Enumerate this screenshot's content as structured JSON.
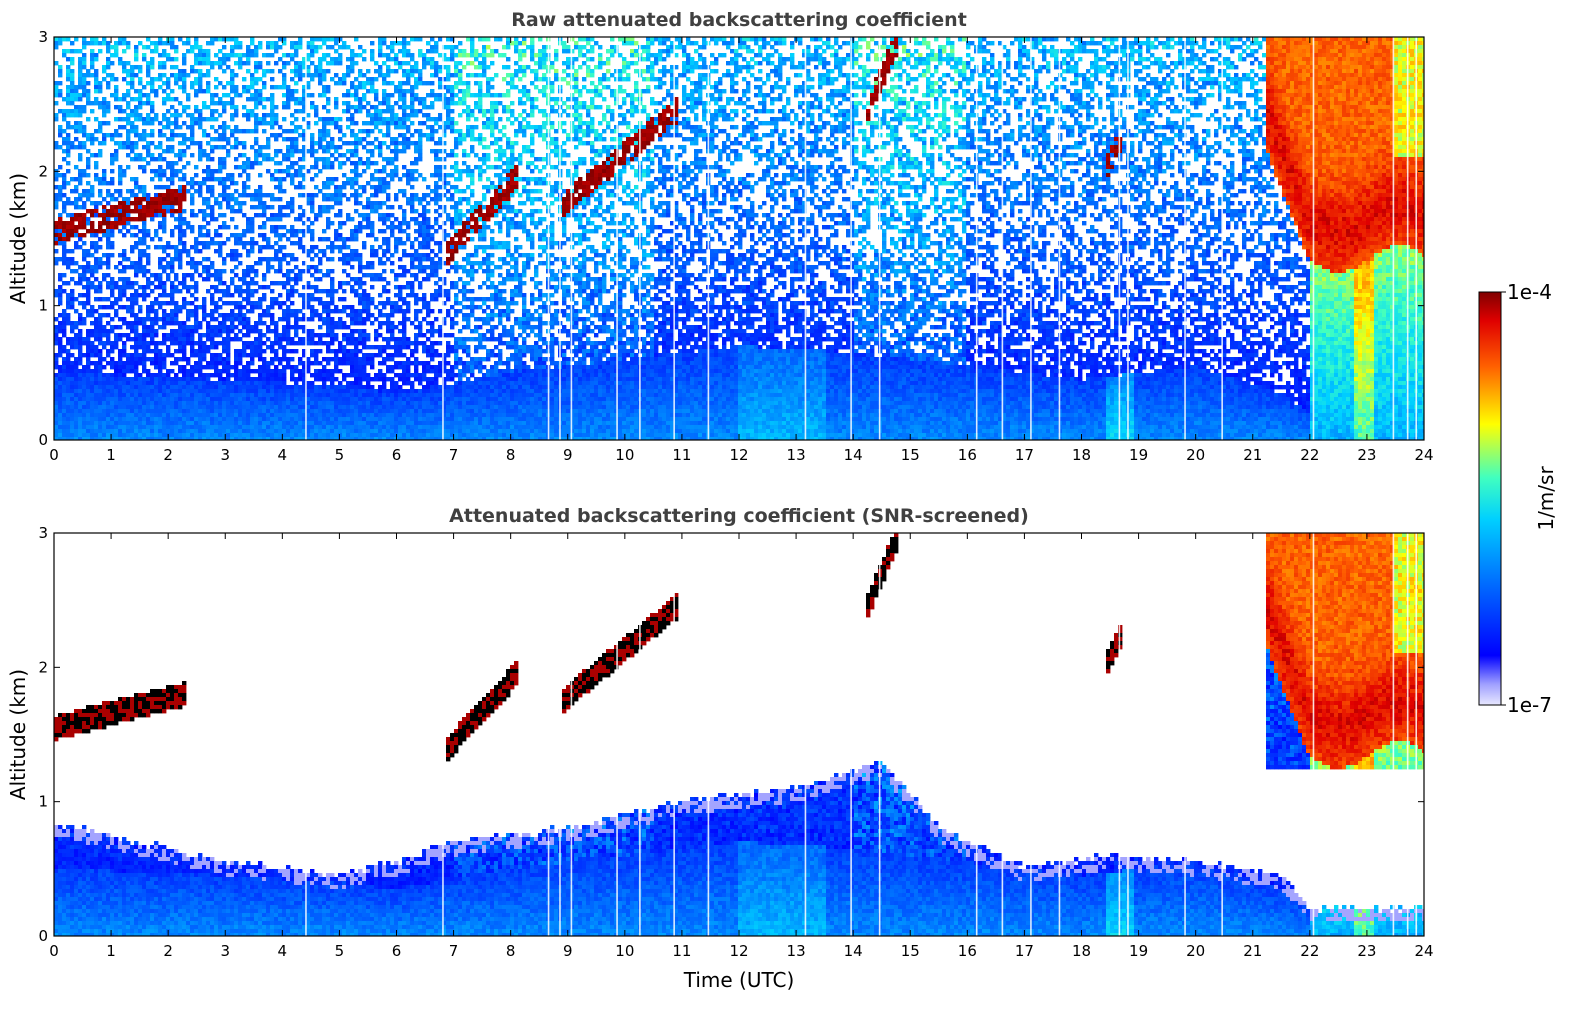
{
  "chart_data": [
    {
      "type": "heatmap",
      "title": "Raw attenuated backscattering coefficient",
      "xlabel": "",
      "ylabel": "Altitude (km)",
      "xlim": [
        0,
        24
      ],
      "ylim": [
        0,
        3
      ],
      "x_ticks": [
        "0",
        "1",
        "2",
        "3",
        "4",
        "5",
        "6",
        "7",
        "8",
        "9",
        "10",
        "11",
        "12",
        "13",
        "14",
        "15",
        "16",
        "17",
        "18",
        "19",
        "20",
        "21",
        "22",
        "23",
        "24"
      ],
      "y_ticks": [
        "0",
        "1",
        "2",
        "3"
      ],
      "colormap": "jet",
      "features": {
        "boundary_layer_top_km": [
          [
            0,
            0.5
          ],
          [
            3,
            0.45
          ],
          [
            5,
            0.4
          ],
          [
            6,
            0.35
          ],
          [
            8,
            0.5
          ],
          [
            10,
            0.6
          ],
          [
            12,
            0.7
          ],
          [
            14,
            0.65
          ],
          [
            16,
            0.55
          ],
          [
            18,
            0.45
          ],
          [
            20,
            0.55
          ],
          [
            21.5,
            0.35
          ],
          [
            22,
            0.2
          ]
        ],
        "cloud_patches": [
          {
            "t": [
              0,
              2.3
            ],
            "z": [
              1.55,
              1.8
            ],
            "level": "max"
          },
          {
            "t": [
              6.9,
              8.1
            ],
            "z": [
              1.4,
              1.95
            ],
            "level": "max"
          },
          {
            "t": [
              8.9,
              10.9
            ],
            "z": [
              1.75,
              2.45
            ],
            "level": "max"
          },
          {
            "t": [
              14.2,
              14.8
            ],
            "z": [
              2.4,
              3.0
            ],
            "level": "max"
          },
          {
            "t": [
              18.4,
              18.7
            ],
            "z": [
              2.0,
              2.25
            ],
            "level": "max"
          },
          {
            "t": [
              21.2,
              24.0
            ],
            "z": [
              1.3,
              3.0
            ],
            "level": "high"
          }
        ]
      }
    },
    {
      "type": "heatmap",
      "title": "Attenuated backscattering coefficient (SNR-screened)",
      "xlabel": "Time (UTC)",
      "ylabel": "Altitude (km)",
      "xlim": [
        0,
        24
      ],
      "ylim": [
        0,
        3
      ],
      "x_ticks": [
        "0",
        "1",
        "2",
        "3",
        "4",
        "5",
        "6",
        "7",
        "8",
        "9",
        "10",
        "11",
        "12",
        "13",
        "14",
        "15",
        "16",
        "17",
        "18",
        "19",
        "20",
        "21",
        "22",
        "23",
        "24"
      ],
      "y_ticks": [
        "0",
        "1",
        "2",
        "3"
      ],
      "colormap": "jet",
      "features": {
        "screened_boundary_layer_top_km": [
          [
            0,
            0.85
          ],
          [
            1,
            0.75
          ],
          [
            3,
            0.55
          ],
          [
            5,
            0.45
          ],
          [
            6,
            0.55
          ],
          [
            7,
            0.7
          ],
          [
            9,
            0.8
          ],
          [
            10,
            0.9
          ],
          [
            11,
            1.0
          ],
          [
            13,
            1.1
          ],
          [
            14.5,
            1.3
          ],
          [
            15.5,
            0.8
          ],
          [
            17,
            0.5
          ],
          [
            18.5,
            0.6
          ],
          [
            20,
            0.55
          ],
          [
            21.5,
            0.45
          ],
          [
            22,
            0.2
          ]
        ]
      }
    }
  ],
  "colorbar": {
    "label": "1/m/sr",
    "max_label": "1e-4",
    "min_label": "1e-7",
    "scale": "log",
    "range": [
      1e-07,
      0.0001
    ]
  },
  "colors": {
    "title_color": "#404040",
    "colormap_stops": [
      "#ffffff",
      "#0000ff",
      "#00aaff",
      "#40ffbf",
      "#ffff00",
      "#ff6000",
      "#800000"
    ]
  }
}
